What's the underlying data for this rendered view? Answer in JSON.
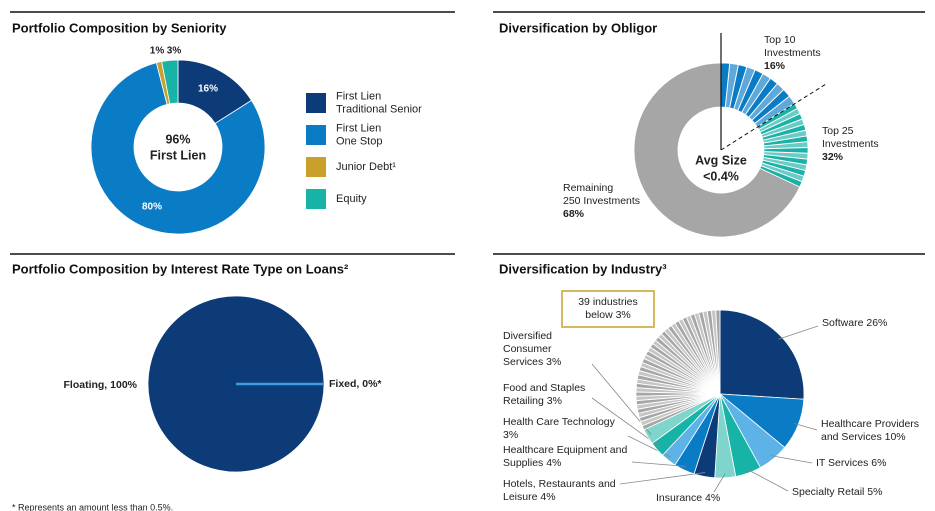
{
  "chart_data": [
    {
      "type": "donut",
      "title": "Portfolio Composition by Seniority",
      "center_label": [
        "96%",
        "First Lien"
      ],
      "categories": [
        [
          "First Lien",
          "Traditional Senior"
        ],
        [
          "First Lien",
          "One Stop"
        ],
        [
          "Junior Debt¹"
        ],
        [
          "Equity"
        ]
      ],
      "values": [
        16,
        80,
        1,
        3
      ],
      "value_labels": [
        "16%",
        "80%",
        "1%",
        "3%"
      ],
      "colors": [
        "#0d3b78",
        "#0a7cc6",
        "#c9a02a",
        "#17b3a7"
      ],
      "legend": "right"
    },
    {
      "type": "donut",
      "title": "Diversification by Obligor",
      "center_label": [
        "Avg Size",
        "<0.4%"
      ],
      "categories": [
        [
          "Top 10",
          "Investments"
        ],
        [
          "Top 25",
          "Investments"
        ],
        [
          "Remaining",
          "250 Investments"
        ]
      ],
      "values": [
        16,
        32,
        68
      ],
      "value_labels": [
        "16%",
        "32%",
        "68%"
      ],
      "colors": [
        "#0a7cc6",
        "#1bb1a6",
        "#a6a6a6"
      ]
    },
    {
      "type": "pie",
      "title": "Portfolio Composition by Interest Rate Type on Loans²",
      "categories": [
        [
          "Floating, 100%"
        ],
        [
          "Fixed, 0%*"
        ]
      ],
      "values": [
        100,
        0
      ],
      "colors": [
        "#0d3b78",
        "#3d9be0"
      ],
      "footnote": "* Represents an amount less than 0.5%."
    },
    {
      "type": "pie",
      "title": "Diversification by Industry³",
      "categories": [
        [
          "Software 26%"
        ],
        [
          "Healthcare Providers",
          "and Services 10%"
        ],
        [
          "IT Services 6%"
        ],
        [
          "Specialty Retail 5%"
        ],
        [
          "Insurance 4%"
        ],
        [
          "Hotels, Restaurants and",
          "Leisure 4%"
        ],
        [
          "Healthcare Equipment and",
          "Supplies 4%"
        ],
        [
          "Health Care Technology",
          "3%"
        ],
        [
          "Food and Staples",
          "Retailing 3%"
        ],
        [
          "Diversified",
          "Consumer",
          "Services 3%"
        ],
        [
          "39 industries",
          "below 3%"
        ]
      ],
      "values": [
        26,
        10,
        6,
        5,
        4,
        4,
        4,
        3,
        3,
        3,
        32
      ],
      "colors": [
        "#0d3b78",
        "#0a7cc6",
        "#5db3e8",
        "#17b3a7",
        "#7fd4cb",
        "#0d3b78",
        "#0a7cc6",
        "#5db3e8",
        "#17b3a7",
        "#7fd4cb",
        "#a6a6a6"
      ]
    }
  ]
}
